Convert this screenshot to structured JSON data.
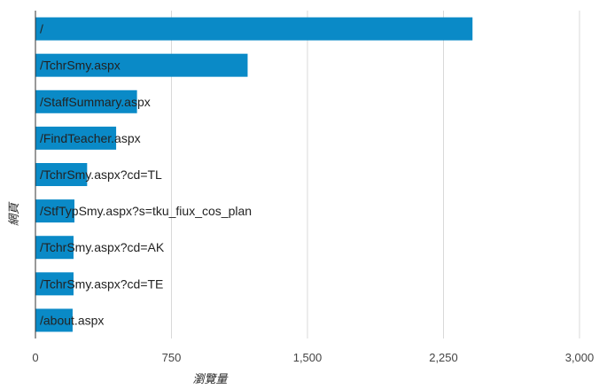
{
  "chart_data": {
    "type": "bar",
    "orientation": "horizontal",
    "categories": [
      "/",
      "/TchrSmy.aspx",
      "/StaffSummary.aspx",
      "/FindTeacher.aspx",
      "/TchrSmy.aspx?cd=TL",
      "/StfTypSmy.aspx?s=tku_fiux_cos_plan",
      "/TchrSmy.aspx?cd=AK",
      "/TchrSmy.aspx?cd=TE",
      "/about.aspx"
    ],
    "values": [
      2410,
      1170,
      560,
      445,
      285,
      215,
      210,
      210,
      205
    ],
    "xlabel": "瀏覽量",
    "ylabel": "網頁",
    "xlim": [
      0,
      3000
    ],
    "xticks": [
      0,
      750,
      1500,
      2250,
      3000
    ],
    "xtick_labels": [
      "0",
      "750",
      "1,500",
      "2,250",
      "3,000"
    ],
    "grid": "vertical",
    "legend": "none",
    "bar_color": "#0a8ac7"
  }
}
